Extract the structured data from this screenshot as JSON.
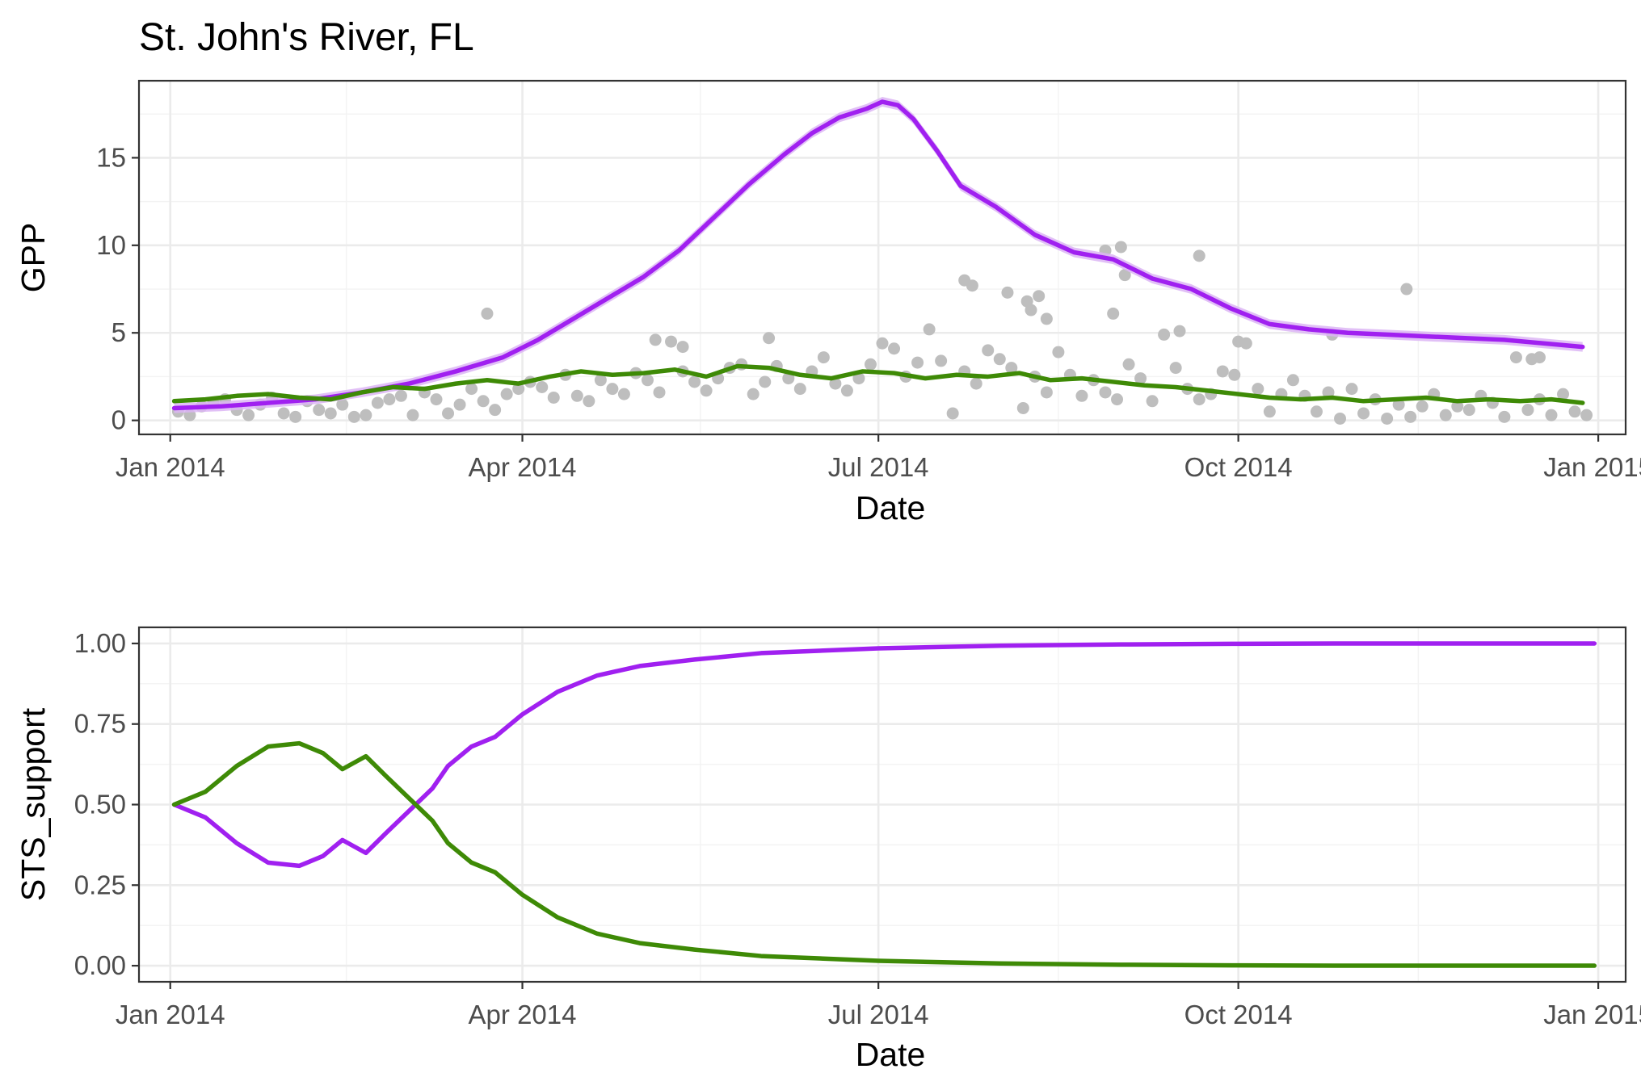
{
  "chart_data": [
    {
      "type": "line",
      "title": "St. John's River, FL",
      "xlabel": "Date",
      "ylabel": "GPP",
      "xlim": [
        "2014-01-01",
        "2014-12-31"
      ],
      "ylim": [
        -0.8,
        19.4
      ],
      "grid": true,
      "x_ticks": [
        {
          "date": "2014-01-01",
          "label": "Jan 2014"
        },
        {
          "date": "2014-04-01",
          "label": "Apr 2014"
        },
        {
          "date": "2014-07-01",
          "label": "Jul 2014"
        },
        {
          "date": "2014-10-01",
          "label": "Oct 2014"
        },
        {
          "date": "2015-01-01",
          "label": "Jan 2015"
        }
      ],
      "y_ticks": [
        {
          "value": 0,
          "label": "0"
        },
        {
          "value": 5,
          "label": "5"
        },
        {
          "value": 10,
          "label": "10"
        },
        {
          "value": 15,
          "label": "15"
        }
      ],
      "observations": {
        "color": "#bebebe",
        "x": [
          "2014-01-03",
          "2014-01-06",
          "2014-01-09",
          "2014-01-12",
          "2014-01-15",
          "2014-01-18",
          "2014-01-21",
          "2014-01-24",
          "2014-01-27",
          "2014-01-30",
          "2014-02-02",
          "2014-02-05",
          "2014-02-08",
          "2014-02-11",
          "2014-02-14",
          "2014-02-17",
          "2014-02-20",
          "2014-02-23",
          "2014-02-26",
          "2014-03-01",
          "2014-03-04",
          "2014-03-07",
          "2014-03-10",
          "2014-03-13",
          "2014-03-16",
          "2014-03-19",
          "2014-03-22",
          "2014-03-25",
          "2014-03-28",
          "2014-03-31",
          "2014-04-03",
          "2014-04-06",
          "2014-04-09",
          "2014-04-12",
          "2014-04-15",
          "2014-04-18",
          "2014-04-21",
          "2014-04-24",
          "2014-04-27",
          "2014-04-30",
          "2014-05-03",
          "2014-05-06",
          "2014-05-09",
          "2014-05-12",
          "2014-05-15",
          "2014-05-18",
          "2014-05-21",
          "2014-05-24",
          "2014-05-27",
          "2014-05-30",
          "2014-06-02",
          "2014-06-05",
          "2014-06-08",
          "2014-06-11",
          "2014-06-14",
          "2014-06-17",
          "2014-06-20",
          "2014-06-23",
          "2014-06-26",
          "2014-06-29",
          "2014-07-02",
          "2014-07-05",
          "2014-07-08",
          "2014-07-11",
          "2014-07-14",
          "2014-07-17",
          "2014-07-20",
          "2014-07-23",
          "2014-07-26",
          "2014-07-29",
          "2014-08-01",
          "2014-08-04",
          "2014-08-07",
          "2014-08-10",
          "2014-08-13",
          "2014-08-16",
          "2014-08-19",
          "2014-08-22",
          "2014-08-25",
          "2014-08-28",
          "2014-08-31",
          "2014-09-03",
          "2014-09-06",
          "2014-09-09",
          "2014-09-12",
          "2014-09-15",
          "2014-09-18",
          "2014-09-21",
          "2014-09-24",
          "2014-09-27",
          "2014-09-30",
          "2014-10-03",
          "2014-10-06",
          "2014-10-09",
          "2014-10-12",
          "2014-10-15",
          "2014-10-18",
          "2014-10-21",
          "2014-10-24",
          "2014-10-27",
          "2014-10-30",
          "2014-11-02",
          "2014-11-05",
          "2014-11-08",
          "2014-11-11",
          "2014-11-14",
          "2014-11-17",
          "2014-11-20",
          "2014-11-23",
          "2014-11-26",
          "2014-11-29",
          "2014-12-02",
          "2014-12-05",
          "2014-12-08",
          "2014-12-11",
          "2014-12-14",
          "2014-12-17",
          "2014-12-20",
          "2014-12-23",
          "2014-12-26",
          "2014-12-29",
          "2014-03-23",
          "2014-05-05",
          "2014-05-12",
          "2014-06-03",
          "2014-07-23",
          "2014-07-25",
          "2014-08-08",
          "2014-08-09",
          "2014-08-11",
          "2014-08-13",
          "2014-08-28",
          "2014-09-01",
          "2014-09-02",
          "2014-09-21",
          "2014-10-01",
          "2014-11-13",
          "2014-08-03",
          "2014-08-30",
          "2014-09-16",
          "2014-10-25",
          "2014-12-15",
          "2014-12-17"
        ],
        "y": [
          0.5,
          0.3,
          0.8,
          1.0,
          1.2,
          0.6,
          0.3,
          0.9,
          1.3,
          0.4,
          0.2,
          1.1,
          0.6,
          0.4,
          0.9,
          0.2,
          0.3,
          1.0,
          1.2,
          1.4,
          0.3,
          1.6,
          1.2,
          0.4,
          0.9,
          1.8,
          1.1,
          0.6,
          1.5,
          1.8,
          2.2,
          1.9,
          1.3,
          2.6,
          1.4,
          1.1,
          2.3,
          1.8,
          1.5,
          2.7,
          2.3,
          1.6,
          4.5,
          2.8,
          2.2,
          1.7,
          2.4,
          3.0,
          3.2,
          1.5,
          2.2,
          3.1,
          2.4,
          1.8,
          2.8,
          3.6,
          2.1,
          1.7,
          2.4,
          3.2,
          4.4,
          4.1,
          2.5,
          3.3,
          5.2,
          3.4,
          0.4,
          2.8,
          2.1,
          4.0,
          3.5,
          3.0,
          0.7,
          2.5,
          1.6,
          3.9,
          2.6,
          1.4,
          2.3,
          1.6,
          1.2,
          3.2,
          2.4,
          1.1,
          4.9,
          3.0,
          1.8,
          1.2,
          1.5,
          2.8,
          2.6,
          4.4,
          1.8,
          0.5,
          1.5,
          2.3,
          1.4,
          0.5,
          1.6,
          0.1,
          1.8,
          0.4,
          1.2,
          0.1,
          0.9,
          0.2,
          0.8,
          1.5,
          0.3,
          0.8,
          0.6,
          1.4,
          1.0,
          0.2,
          3.6,
          0.6,
          1.2,
          0.3,
          1.5,
          0.5,
          0.3,
          6.1,
          4.6,
          4.2,
          4.7,
          8.0,
          7.7,
          6.8,
          6.3,
          7.1,
          5.8,
          9.7,
          9.9,
          8.3,
          9.4,
          4.5,
          7.5,
          7.3,
          6.1,
          5.1,
          4.9,
          3.5,
          3.6
        ]
      },
      "series": [
        {
          "color": "#a020f0",
          "band_color": "#dcb5f5",
          "x": [
            "2014-01-02",
            "2014-01-14",
            "2014-01-26",
            "2014-02-07",
            "2014-02-19",
            "2014-03-03",
            "2014-03-15",
            "2014-03-27",
            "2014-04-05",
            "2014-04-14",
            "2014-04-23",
            "2014-05-02",
            "2014-05-11",
            "2014-05-20",
            "2014-05-29",
            "2014-06-07",
            "2014-06-14",
            "2014-06-21",
            "2014-06-28",
            "2014-07-02",
            "2014-07-06",
            "2014-07-10",
            "2014-07-16",
            "2014-07-22",
            "2014-07-31",
            "2014-08-10",
            "2014-08-20",
            "2014-08-30",
            "2014-09-09",
            "2014-09-19",
            "2014-09-29",
            "2014-10-09",
            "2014-10-19",
            "2014-10-29",
            "2014-11-08",
            "2014-11-18",
            "2014-11-28",
            "2014-12-08",
            "2014-12-18",
            "2014-12-28"
          ],
          "y": [
            0.7,
            0.8,
            1.0,
            1.2,
            1.6,
            2.1,
            2.8,
            3.6,
            4.6,
            5.8,
            7.0,
            8.2,
            9.7,
            11.6,
            13.5,
            15.2,
            16.4,
            17.3,
            17.8,
            18.2,
            18.0,
            17.2,
            15.4,
            13.4,
            12.2,
            10.6,
            9.6,
            9.2,
            8.1,
            7.5,
            6.4,
            5.5,
            5.2,
            5.0,
            4.9,
            4.8,
            4.7,
            4.6,
            4.4,
            4.2
          ]
        },
        {
          "color": "#3e8a06",
          "x": [
            "2014-01-02",
            "2014-01-10",
            "2014-01-18",
            "2014-01-26",
            "2014-02-03",
            "2014-02-11",
            "2014-02-19",
            "2014-02-27",
            "2014-03-07",
            "2014-03-15",
            "2014-03-23",
            "2014-03-31",
            "2014-04-08",
            "2014-04-16",
            "2014-04-24",
            "2014-05-02",
            "2014-05-10",
            "2014-05-18",
            "2014-05-26",
            "2014-06-03",
            "2014-06-11",
            "2014-06-19",
            "2014-06-27",
            "2014-07-05",
            "2014-07-13",
            "2014-07-21",
            "2014-07-29",
            "2014-08-06",
            "2014-08-14",
            "2014-08-22",
            "2014-08-30",
            "2014-09-07",
            "2014-09-15",
            "2014-09-23",
            "2014-10-01",
            "2014-10-09",
            "2014-10-17",
            "2014-10-25",
            "2014-11-02",
            "2014-11-10",
            "2014-11-18",
            "2014-11-26",
            "2014-12-04",
            "2014-12-12",
            "2014-12-20",
            "2014-12-28"
          ],
          "y": [
            1.1,
            1.2,
            1.4,
            1.5,
            1.3,
            1.2,
            1.6,
            1.9,
            1.8,
            2.1,
            2.3,
            2.1,
            2.5,
            2.8,
            2.6,
            2.7,
            2.9,
            2.5,
            3.1,
            3.0,
            2.6,
            2.4,
            2.8,
            2.7,
            2.4,
            2.6,
            2.5,
            2.7,
            2.3,
            2.4,
            2.2,
            2.0,
            1.9,
            1.7,
            1.5,
            1.3,
            1.2,
            1.3,
            1.1,
            1.2,
            1.3,
            1.1,
            1.2,
            1.1,
            1.2,
            1.0
          ]
        }
      ]
    },
    {
      "type": "line",
      "xlabel": "Date",
      "ylabel": "STS_support",
      "xlim": [
        "2014-01-01",
        "2014-12-31"
      ],
      "ylim": [
        -0.05,
        1.05
      ],
      "grid": true,
      "x_ticks": [
        {
          "date": "2014-01-01",
          "label": "Jan 2014"
        },
        {
          "date": "2014-04-01",
          "label": "Apr 2014"
        },
        {
          "date": "2014-07-01",
          "label": "Jul 2014"
        },
        {
          "date": "2014-10-01",
          "label": "Oct 2014"
        },
        {
          "date": "2015-01-01",
          "label": "Jan 2015"
        }
      ],
      "y_ticks": [
        {
          "value": 0,
          "label": "0.00"
        },
        {
          "value": 0.25,
          "label": "0.25"
        },
        {
          "value": 0.5,
          "label": "0.50"
        },
        {
          "value": 0.75,
          "label": "0.75"
        },
        {
          "value": 1.0,
          "label": "1.00"
        }
      ],
      "series": [
        {
          "color": "#a020f0",
          "x": [
            "2014-01-02",
            "2014-01-10",
            "2014-01-18",
            "2014-01-26",
            "2014-02-03",
            "2014-02-09",
            "2014-02-14",
            "2014-02-20",
            "2014-02-25",
            "2014-03-03",
            "2014-03-09",
            "2014-03-13",
            "2014-03-19",
            "2014-03-25",
            "2014-03-28",
            "2014-04-01",
            "2014-04-10",
            "2014-04-20",
            "2014-05-01",
            "2014-05-15",
            "2014-06-01",
            "2014-07-01",
            "2014-08-01",
            "2014-09-01",
            "2014-10-01",
            "2014-11-01",
            "2014-12-01",
            "2014-12-31"
          ],
          "y": [
            0.5,
            0.46,
            0.38,
            0.32,
            0.31,
            0.34,
            0.39,
            0.35,
            0.41,
            0.48,
            0.55,
            0.62,
            0.68,
            0.71,
            0.74,
            0.78,
            0.85,
            0.9,
            0.93,
            0.95,
            0.97,
            0.985,
            0.993,
            0.997,
            0.999,
            1.0,
            1.0,
            1.0
          ]
        },
        {
          "color": "#3e8a06",
          "x": [
            "2014-01-02",
            "2014-01-10",
            "2014-01-18",
            "2014-01-26",
            "2014-02-03",
            "2014-02-09",
            "2014-02-14",
            "2014-02-20",
            "2014-02-25",
            "2014-03-03",
            "2014-03-09",
            "2014-03-13",
            "2014-03-19",
            "2014-03-25",
            "2014-03-28",
            "2014-04-01",
            "2014-04-10",
            "2014-04-20",
            "2014-05-01",
            "2014-05-15",
            "2014-06-01",
            "2014-07-01",
            "2014-08-01",
            "2014-09-01",
            "2014-10-01",
            "2014-11-01",
            "2014-12-01",
            "2014-12-31"
          ],
          "y": [
            0.5,
            0.54,
            0.62,
            0.68,
            0.69,
            0.66,
            0.61,
            0.65,
            0.59,
            0.52,
            0.45,
            0.38,
            0.32,
            0.29,
            0.26,
            0.22,
            0.15,
            0.1,
            0.07,
            0.05,
            0.03,
            0.015,
            0.007,
            0.003,
            0.001,
            0.0,
            0.0,
            0.0
          ]
        }
      ]
    }
  ]
}
